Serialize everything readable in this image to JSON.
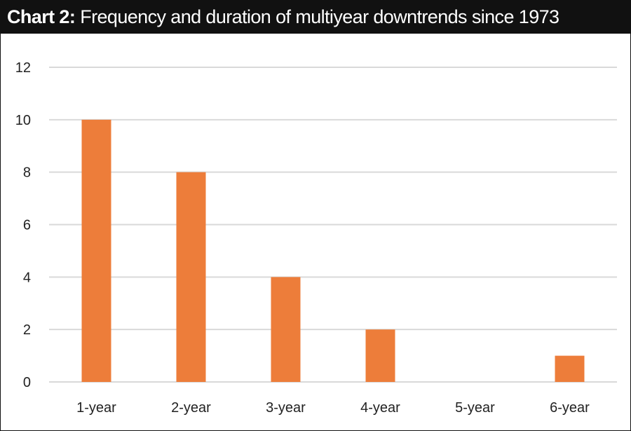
{
  "title": {
    "prefix": "Chart 2:",
    "text": "Frequency and duration of multiyear downtrends since 1973"
  },
  "colors": {
    "bar": "#ED7D3A",
    "grid": "#D9D9D9",
    "title_bg": "#111111",
    "title_text": "#FFFFFF"
  },
  "chart_data": {
    "type": "bar",
    "title": "Frequency and duration of multiyear downtrends since 1973",
    "categories": [
      "1-year",
      "2-year",
      "3-year",
      "4-year",
      "5-year",
      "6-year"
    ],
    "values": [
      10,
      8,
      4,
      2,
      0,
      1
    ],
    "ylim": [
      0,
      12
    ],
    "yticks": [
      0,
      2,
      4,
      6,
      8,
      10,
      12
    ],
    "xlabel": "",
    "ylabel": "",
    "grid": true,
    "legend": "none"
  }
}
